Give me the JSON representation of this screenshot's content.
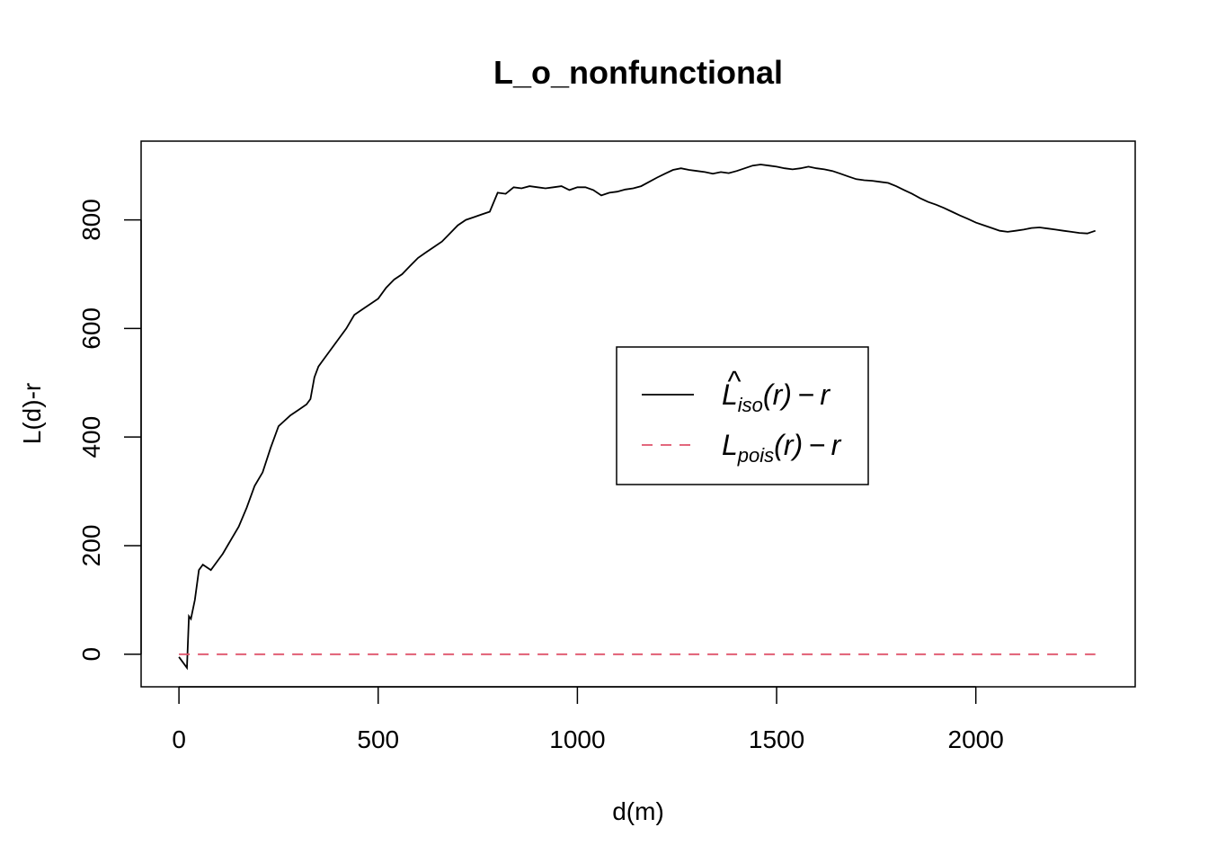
{
  "chart_data": {
    "type": "line",
    "title": "L_o_nonfunctional",
    "xlabel": "d(m)",
    "ylabel": "L(d)-r",
    "xlim": [
      -95,
      2400
    ],
    "ylim": [
      -60,
      945
    ],
    "x_ticks": [
      0,
      500,
      1000,
      1500,
      2000
    ],
    "y_ticks": [
      0,
      200,
      400,
      600,
      800
    ],
    "grid": false,
    "legend": {
      "position": "center-right",
      "entries": [
        {
          "main": "L",
          "hat": "^",
          "sub": "iso",
          "tail": "(r) − r",
          "color": "#000000",
          "dash": "solid"
        },
        {
          "main": "L",
          "hat": "",
          "sub": "pois",
          "tail": "(r) − r",
          "color": "#DF536B",
          "dash": "dashed"
        }
      ]
    },
    "series": [
      {
        "color": "#000000",
        "dash": "solid",
        "x": [
          0,
          20,
          25,
          30,
          40,
          50,
          60,
          80,
          100,
          110,
          130,
          150,
          170,
          190,
          210,
          230,
          250,
          280,
          300,
          320,
          330,
          340,
          350,
          360,
          380,
          400,
          420,
          440,
          460,
          480,
          500,
          520,
          540,
          560,
          580,
          600,
          620,
          640,
          660,
          680,
          700,
          720,
          740,
          760,
          780,
          800,
          820,
          840,
          860,
          880,
          900,
          920,
          940,
          960,
          980,
          1000,
          1020,
          1040,
          1060,
          1080,
          1100,
          1120,
          1140,
          1160,
          1180,
          1200,
          1220,
          1240,
          1260,
          1280,
          1300,
          1320,
          1340,
          1360,
          1380,
          1400,
          1420,
          1440,
          1460,
          1480,
          1500,
          1520,
          1540,
          1560,
          1580,
          1600,
          1620,
          1640,
          1660,
          1680,
          1700,
          1720,
          1740,
          1760,
          1780,
          1800,
          1820,
          1840,
          1860,
          1880,
          1900,
          1920,
          1940,
          1960,
          1980,
          2000,
          2020,
          2040,
          2060,
          2080,
          2100,
          2120,
          2140,
          2160,
          2180,
          2200,
          2220,
          2240,
          2260,
          2280,
          2300
        ],
        "y": [
          -5,
          -25,
          70,
          65,
          100,
          155,
          165,
          155,
          175,
          185,
          210,
          235,
          270,
          310,
          335,
          380,
          420,
          440,
          450,
          460,
          470,
          510,
          530,
          540,
          560,
          580,
          600,
          625,
          635,
          645,
          655,
          675,
          690,
          700,
          715,
          730,
          740,
          750,
          760,
          775,
          790,
          800,
          805,
          810,
          815,
          850,
          848,
          860,
          858,
          862,
          860,
          858,
          860,
          862,
          855,
          860,
          860,
          855,
          845,
          850,
          852,
          856,
          858,
          862,
          870,
          878,
          885,
          892,
          895,
          892,
          890,
          888,
          885,
          888,
          886,
          890,
          895,
          900,
          902,
          900,
          898,
          895,
          893,
          895,
          898,
          895,
          893,
          890,
          885,
          880,
          875,
          873,
          872,
          870,
          868,
          862,
          855,
          848,
          840,
          833,
          828,
          822,
          815,
          808,
          802,
          795,
          790,
          785,
          780,
          778,
          780,
          782,
          785,
          786,
          784,
          782,
          780,
          778,
          776,
          775,
          780
        ]
      },
      {
        "color": "#DF536B",
        "dash": "dashed",
        "x": [
          0,
          2300
        ],
        "y": [
          0,
          0
        ]
      }
    ]
  }
}
